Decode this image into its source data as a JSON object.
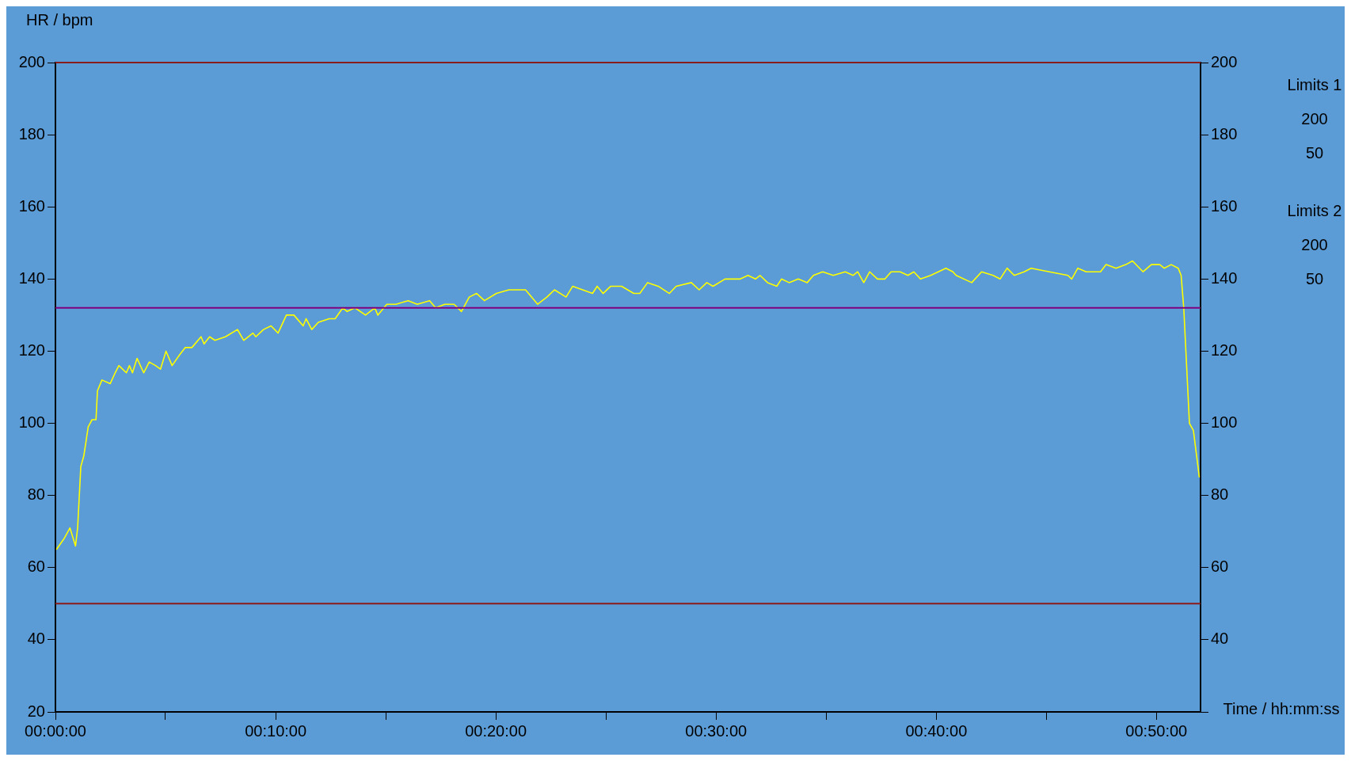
{
  "chart_data": {
    "type": "line",
    "ylabel": "HR / bpm",
    "xlabel": "Time / hh:mm:ss",
    "annotations": [
      "Limits 1",
      "200",
      "50",
      "Limits 2",
      "200",
      "50"
    ],
    "xlim": [
      0,
      0.8667
    ],
    "xticks": [
      {
        "value": 0,
        "label": "00:00:00"
      },
      {
        "value": 0.0833,
        "label": null
      },
      {
        "value": 0.1667,
        "label": "00:10:00"
      },
      {
        "value": 0.25,
        "label": null
      },
      {
        "value": 0.3333,
        "label": "00:20:00"
      },
      {
        "value": 0.4167,
        "label": null
      },
      {
        "value": 0.5,
        "label": "00:30:00"
      },
      {
        "value": 0.5833,
        "label": null
      },
      {
        "value": 0.6667,
        "label": "00:40:00"
      },
      {
        "value": 0.75,
        "label": null
      },
      {
        "value": 0.8333,
        "label": "00:50:00"
      }
    ],
    "ylim": [
      20,
      200
    ],
    "yticks": [
      20,
      40,
      60,
      80,
      100,
      120,
      140,
      160,
      180,
      200
    ],
    "y2lim": [
      20,
      200
    ],
    "y2ticks": [
      {
        "value": 20,
        "label": null
      },
      40,
      60,
      80,
      100,
      120,
      140,
      160,
      180,
      200
    ],
    "grid": false,
    "legend": false,
    "marker": "none",
    "line_style": "solid",
    "ref_lines": [
      {
        "axis": "y",
        "value": 200,
        "color": "#8b1a1a"
      },
      {
        "axis": "y",
        "value": 50,
        "color": "#8b1a1a"
      },
      {
        "axis": "y",
        "value": 132,
        "color": "#800080"
      }
    ],
    "series": [
      {
        "color": "#ffff00",
        "x": [
          0.0007,
          0.0065,
          0.011,
          0.0152,
          0.0168,
          0.0192,
          0.0215,
          0.0248,
          0.0277,
          0.0307,
          0.0318,
          0.0352,
          0.0415,
          0.0452,
          0.048,
          0.0537,
          0.056,
          0.0583,
          0.0618,
          0.0668,
          0.071,
          0.0757,
          0.0795,
          0.0837,
          0.0883,
          0.094,
          0.0982,
          0.1033,
          0.1102,
          0.1125,
          0.1167,
          0.1207,
          0.1287,
          0.1378,
          0.1425,
          0.1495,
          0.1517,
          0.1575,
          0.1632,
          0.1685,
          0.1748,
          0.1805,
          0.1875,
          0.1897,
          0.194,
          0.199,
          0.2072,
          0.2117,
          0.2175,
          0.2208,
          0.2267,
          0.2347,
          0.2417,
          0.244,
          0.2508,
          0.2578,
          0.267,
          0.2738,
          0.2832,
          0.2878,
          0.2947,
          0.3017,
          0.3073,
          0.3132,
          0.3188,
          0.3247,
          0.3338,
          0.3432,
          0.35,
          0.3558,
          0.365,
          0.372,
          0.3777,
          0.3865,
          0.3915,
          0.4065,
          0.41,
          0.4145,
          0.4203,
          0.4285,
          0.4377,
          0.4423,
          0.4482,
          0.4562,
          0.4647,
          0.4698,
          0.4813,
          0.4872,
          0.493,
          0.4977,
          0.5068,
          0.5183,
          0.5242,
          0.5298,
          0.5333,
          0.539,
          0.546,
          0.5495,
          0.5553,
          0.5622,
          0.569,
          0.5737,
          0.5807,
          0.5887,
          0.5978,
          0.6037,
          0.6072,
          0.6118,
          0.6163,
          0.6222,
          0.6278,
          0.6325,
          0.6393,
          0.6452,
          0.6497,
          0.6548,
          0.6625,
          0.6682,
          0.674,
          0.6793,
          0.6817,
          0.6935,
          0.701,
          0.7097,
          0.715,
          0.7203,
          0.7257,
          0.7332,
          0.7385,
          0.7523,
          0.7663,
          0.7692,
          0.7738,
          0.7802,
          0.791,
          0.7952,
          0.8027,
          0.8102,
          0.8152,
          0.8232,
          0.8295,
          0.8358,
          0.8392,
          0.8445,
          0.8498,
          0.852,
          0.854,
          0.8583,
          0.8613,
          0.8658
        ],
        "values": [
          65,
          68,
          71,
          66,
          71,
          88,
          91,
          99,
          101,
          101,
          109,
          112,
          111,
          114,
          116,
          114,
          116,
          114,
          118,
          114,
          117,
          116,
          115,
          120,
          116,
          119,
          121,
          121,
          124,
          122,
          124,
          123,
          124,
          126,
          123,
          125,
          124,
          126,
          127,
          125,
          130,
          130,
          127,
          129,
          126,
          128,
          129,
          129,
          132,
          131,
          132,
          130,
          132,
          130,
          133,
          133,
          134,
          133,
          134,
          132,
          133,
          133,
          131,
          135,
          136,
          134,
          136,
          137,
          137,
          137,
          133,
          135,
          137,
          135,
          138,
          136,
          138,
          136,
          138,
          138,
          136,
          136,
          139,
          138,
          136,
          138,
          139,
          137,
          139,
          138,
          140,
          140,
          141,
          140,
          141,
          139,
          138,
          140,
          139,
          140,
          139,
          141,
          142,
          141,
          142,
          141,
          142,
          139,
          142,
          140,
          140,
          142,
          142,
          141,
          142,
          140,
          141,
          142,
          143,
          142,
          141,
          139,
          142,
          141,
          140,
          143,
          141,
          142,
          143,
          142,
          141,
          140,
          143,
          142,
          142,
          144,
          143,
          144,
          145,
          142,
          144,
          144,
          143,
          144,
          143,
          141,
          132,
          100,
          98,
          85
        ]
      }
    ]
  }
}
